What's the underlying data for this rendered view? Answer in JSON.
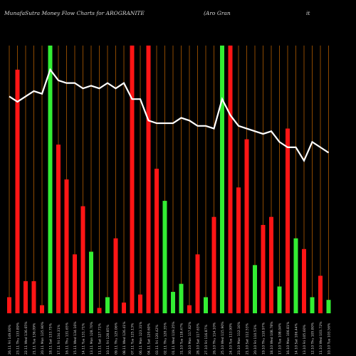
{
  "header": {
    "title": "MunafaSutra  Money Flow  Charts for AROGRANITE",
    "subtitle": "(Aro  Gran",
    "suffix": "it"
  },
  "chart_data": {
    "type": "bar",
    "title": "MunafaSutra  Money Flow  Charts for AROGRANITE",
    "ylabel": "",
    "xlabel": "",
    "ylim": [
      0,
      100
    ],
    "colors": {
      "up": "#33ee33",
      "down": "#ff1515",
      "price": "#ffffff",
      "grid": "#b05a00"
    },
    "categories": [
      "26.11 Fri 149.00%",
      "23.11 Thu 133.89%",
      "22.11 Wed 136.65%",
      "21.11 Tue 136.09%",
      "20.11 Mon 135.90%",
      "18.11 Sat 133.75%",
      "17.11 Fri 134.31%",
      "16.11 Thu 131.65%",
      "15.11 Wed 134.16%",
      "14.11 Tue 131.71%",
      "13.11 Mon 128.70%",
      "11.11 Sat 127.71%",
      "10.11 Fri 128.85%",
      "09.11 Thu 125.06%",
      "08.11 Wed 126.41%",
      "07.11 Tue 125.13%",
      "06.11 Mon 123.31%",
      "04.11 Sat 120.60%",
      "03.11 Fri 120.42%",
      "02.11 Thu 120.35%",
      "01.11 Wed 119.25%",
      "31.10 Tue 118.47%",
      "30.10 Mon 117.82%",
      "28.10 Sat 117.63%",
      "27.10 Fri 116.87%",
      "26.10 Thu 114.10%",
      "25.10 Wed 115.90%",
      "24.10 Tue 113.90%",
      "23.10 Mon 112.16%",
      "21.10 Sat 112.53%",
      "20.10 Fri 110.53%",
      "19.10 Thu 110.97%",
      "18.10 Wed 108.78%",
      "17.10 Tue 108.04%",
      "16.10 Mon 106.81%",
      "14.10 Sat 106.44%",
      "13.10 Fri 105.60%",
      "12.10 Thu 105.80%",
      "11.10 Wed 103.72%",
      "10.10 Tue 103.56%"
    ],
    "series": [
      {
        "values": [
          6,
          91,
          12,
          12,
          3,
          100,
          63,
          50,
          22,
          40,
          23,
          2,
          6,
          28,
          4,
          100,
          7,
          100,
          54,
          42,
          8,
          11,
          3,
          22,
          6,
          36,
          100,
          100,
          47,
          65,
          18,
          33,
          36,
          10,
          69,
          28,
          24,
          6,
          14,
          5
        ],
        "colors": [
          "down",
          "down",
          "down",
          "down",
          "down",
          "up",
          "down",
          "down",
          "down",
          "down",
          "up",
          "down",
          "up",
          "down",
          "down",
          "down",
          "down",
          "down",
          "down",
          "up",
          "up",
          "up",
          "down",
          "down",
          "up",
          "down",
          "up",
          "down",
          "down",
          "down",
          "up",
          "down",
          "down",
          "up",
          "down",
          "up",
          "down",
          "up",
          "down",
          "up"
        ]
      },
      {
        "values": [
          81,
          79,
          81,
          83,
          82,
          91,
          87,
          86,
          86,
          84,
          85,
          84,
          86,
          84,
          86,
          80,
          80,
          72,
          71,
          71,
          71,
          73,
          72,
          70,
          70,
          69,
          80,
          74,
          70,
          69,
          68,
          67,
          68,
          64,
          62,
          62,
          57,
          64,
          62,
          60
        ]
      }
    ]
  }
}
